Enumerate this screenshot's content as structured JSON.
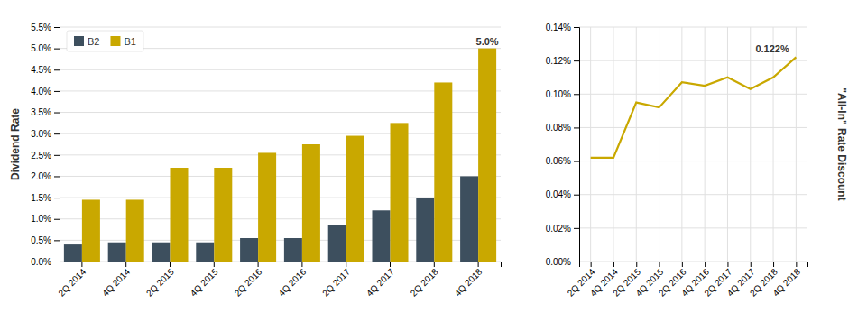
{
  "chart_data": [
    {
      "type": "bar",
      "categories": [
        "2Q 2014",
        "4Q 2014",
        "2Q 2015",
        "4Q 2015",
        "2Q 2016",
        "4Q 2016",
        "2Q 2017",
        "4Q 2017",
        "2Q 2018",
        "4Q 2018"
      ],
      "series": [
        {
          "name": "B2",
          "color": "#3d4f5e",
          "values": [
            0.004,
            0.0045,
            0.0045,
            0.0045,
            0.0055,
            0.0055,
            0.0085,
            0.012,
            0.015,
            0.02
          ]
        },
        {
          "name": "B1",
          "color": "#c9a800",
          "values": [
            0.0145,
            0.0145,
            0.022,
            0.022,
            0.0255,
            0.0275,
            0.0295,
            0.0325,
            0.042,
            0.05
          ]
        }
      ],
      "ylabel": "Dividend Rate",
      "ylim": [
        0,
        0.055
      ],
      "yticks": [
        {
          "value": 0.0,
          "label": "0.0%"
        },
        {
          "value": 0.005,
          "label": "0.5%"
        },
        {
          "value": 0.01,
          "label": "1.0%"
        },
        {
          "value": 0.015,
          "label": "1.5%"
        },
        {
          "value": 0.02,
          "label": "2.0%"
        },
        {
          "value": 0.025,
          "label": "2.5%"
        },
        {
          "value": 0.03,
          "label": "3.0%"
        },
        {
          "value": 0.035,
          "label": "3.5%"
        },
        {
          "value": 0.04,
          "label": "4.0%"
        },
        {
          "value": 0.045,
          "label": "4.5%"
        },
        {
          "value": 0.05,
          "label": "5.0%"
        },
        {
          "value": 0.055,
          "label": "5.5%"
        }
      ],
      "grid": "y",
      "legend": "upper left",
      "annotations": [
        {
          "text": "5.0%",
          "x": "4Q 2018",
          "series": "B1",
          "y": 0.05
        }
      ]
    },
    {
      "type": "line",
      "categories": [
        "2Q 2014",
        "4Q 2014",
        "2Q 2015",
        "4Q 2015",
        "2Q 2016",
        "4Q 2016",
        "2Q 2017",
        "4Q 2017",
        "2Q 2018",
        "4Q 2018"
      ],
      "values": [
        0.00062,
        0.00062,
        0.00095,
        0.00092,
        0.00107,
        0.00105,
        0.0011,
        0.00103,
        0.0011,
        0.00122
      ],
      "color": "#c9a800",
      "ylabel": "\"All-In\" Rate Discount",
      "ylim": [
        0,
        0.0014
      ],
      "yticks": [
        {
          "value": 0.0,
          "label": "0.00%"
        },
        {
          "value": 0.0002,
          "label": "0.02%"
        },
        {
          "value": 0.0004,
          "label": "0.04%"
        },
        {
          "value": 0.0006,
          "label": "0.06%"
        },
        {
          "value": 0.0008,
          "label": "0.08%"
        },
        {
          "value": 0.001,
          "label": "0.10%"
        },
        {
          "value": 0.0012,
          "label": "0.12%"
        },
        {
          "value": 0.0014,
          "label": "0.14%"
        }
      ],
      "grid": true,
      "annotations": [
        {
          "text": "0.122%",
          "x": "4Q 2018",
          "y": 0.00122
        }
      ]
    }
  ]
}
